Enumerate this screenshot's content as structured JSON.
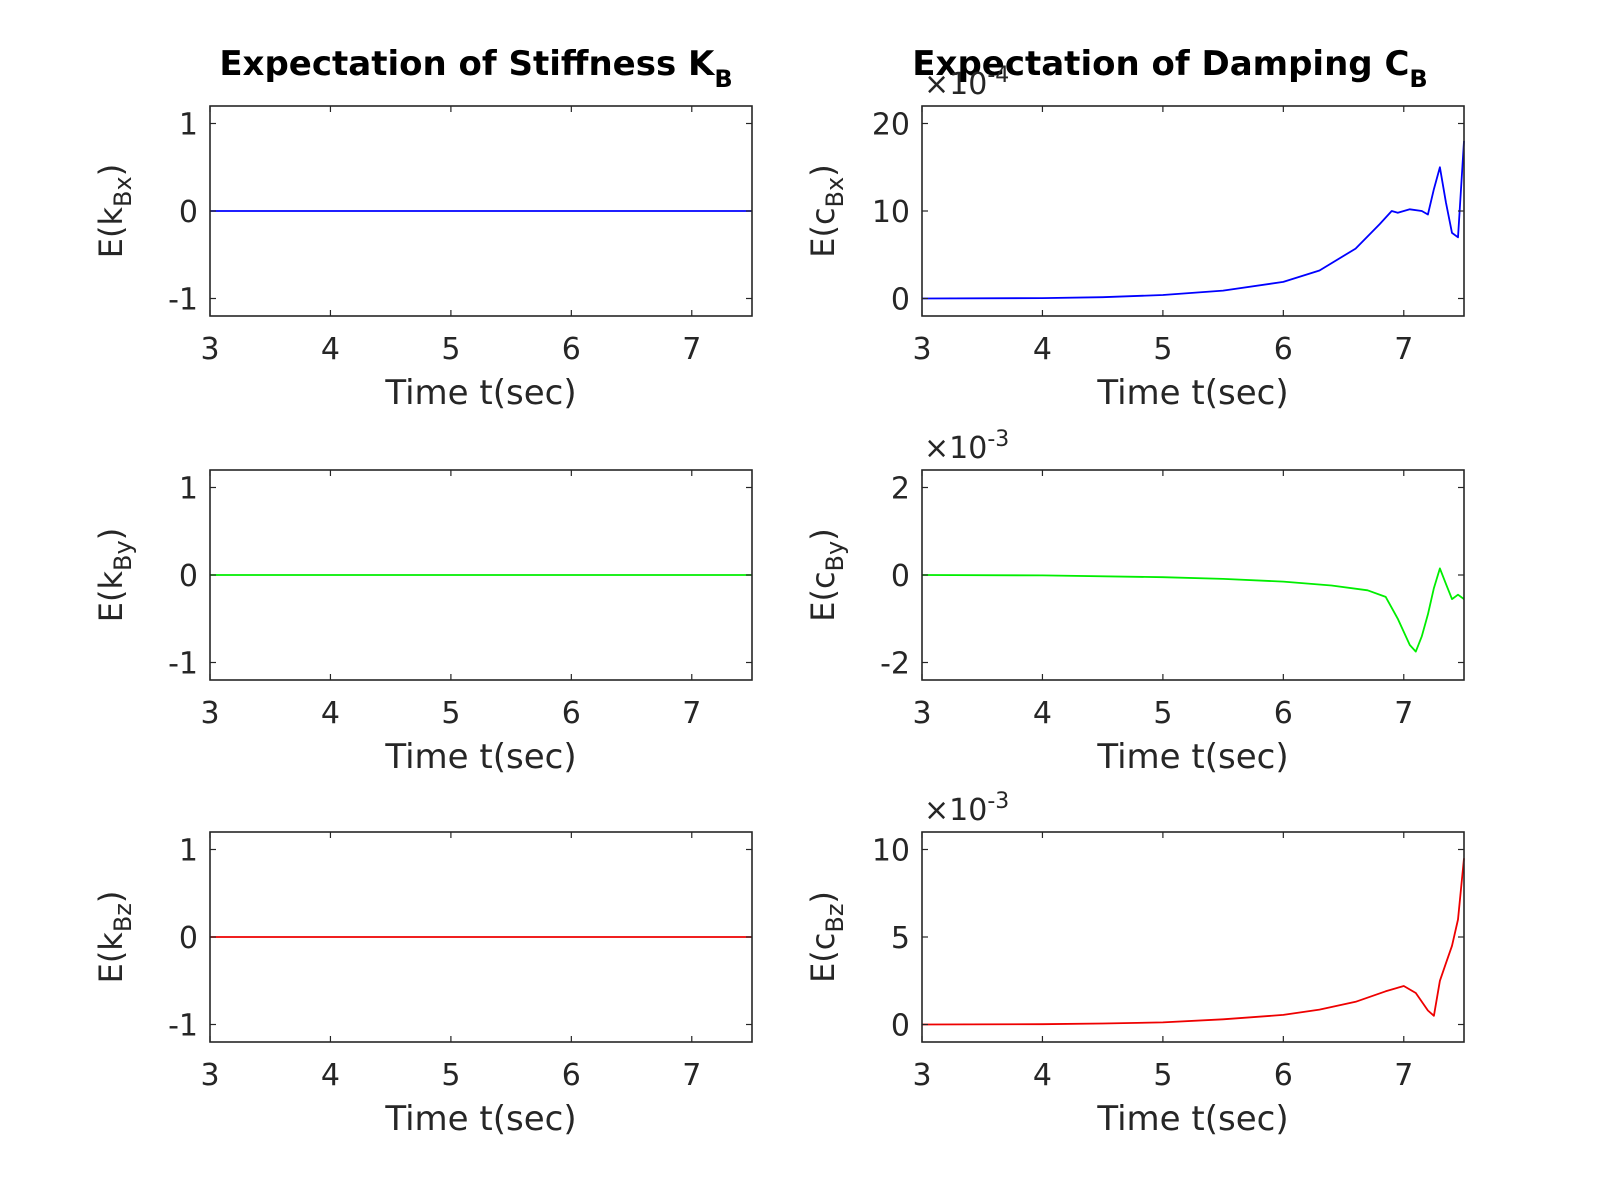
{
  "figure": {
    "col_titles": [
      {
        "text": "Expectation of Stiffness K",
        "sub": "B"
      },
      {
        "text": "Expectation of Damping C",
        "sub": "B"
      }
    ]
  },
  "chart_data": [
    {
      "type": "line",
      "id": "kBx",
      "ylabel": {
        "pre": "E(k",
        "sub": "Bx",
        "post": ")"
      },
      "xlabel": "Time t(sec)",
      "xlim": [
        3,
        7.5
      ],
      "ylim": [
        -1.2,
        1.2
      ],
      "xticks": [
        3,
        4,
        5,
        6,
        7
      ],
      "yticks": [
        -1,
        0,
        1
      ],
      "ytick_labels": [
        "-1",
        "0",
        "1"
      ],
      "multiplier": null,
      "series": [
        {
          "color": "#0000ff",
          "x": [
            3,
            7.5
          ],
          "y": [
            0,
            0
          ]
        }
      ]
    },
    {
      "type": "line",
      "id": "cBx",
      "ylabel": {
        "pre": "E(c",
        "sub": "Bx",
        "post": ")"
      },
      "xlabel": "Time t(sec)",
      "xlim": [
        3,
        7.5
      ],
      "ylim": [
        -2,
        22
      ],
      "xticks": [
        3,
        4,
        5,
        6,
        7
      ],
      "yticks": [
        0,
        10,
        20
      ],
      "ytick_labels": [
        "0",
        "10",
        "20"
      ],
      "multiplier": {
        "base": "×10",
        "exp": "-4"
      },
      "series": [
        {
          "color": "#0000ff",
          "x": [
            3,
            4,
            4.5,
            5,
            5.5,
            6,
            6.3,
            6.6,
            6.8,
            6.9,
            6.95,
            7.05,
            7.15,
            7.2,
            7.25,
            7.3,
            7.35,
            7.4,
            7.45,
            7.5
          ],
          "y": [
            0,
            0.05,
            0.15,
            0.4,
            0.9,
            1.9,
            3.2,
            5.7,
            8.5,
            10.0,
            9.8,
            10.2,
            10.0,
            9.6,
            12.5,
            15.0,
            11.0,
            7.5,
            7.0,
            18.0
          ]
        }
      ]
    },
    {
      "type": "line",
      "id": "kBy",
      "ylabel": {
        "pre": "E(k",
        "sub": "By",
        "post": ")"
      },
      "xlabel": "Time t(sec)",
      "xlim": [
        3,
        7.5
      ],
      "ylim": [
        -1.2,
        1.2
      ],
      "xticks": [
        3,
        4,
        5,
        6,
        7
      ],
      "yticks": [
        -1,
        0,
        1
      ],
      "ytick_labels": [
        "-1",
        "0",
        "1"
      ],
      "multiplier": null,
      "series": [
        {
          "color": "#00ee00",
          "x": [
            3,
            7.5
          ],
          "y": [
            0,
            0
          ]
        }
      ]
    },
    {
      "type": "line",
      "id": "cBy",
      "ylabel": {
        "pre": "E(c",
        "sub": "By",
        "post": ")"
      },
      "xlabel": "Time t(sec)",
      "xlim": [
        3,
        7.5
      ],
      "ylim": [
        -2.4,
        2.4
      ],
      "xticks": [
        3,
        4,
        5,
        6,
        7
      ],
      "yticks": [
        -2,
        0,
        2
      ],
      "ytick_labels": [
        "-2",
        "0",
        "2"
      ],
      "multiplier": {
        "base": "×10",
        "exp": "-3"
      },
      "series": [
        {
          "color": "#00ee00",
          "x": [
            3,
            4,
            5,
            5.5,
            6,
            6.4,
            6.7,
            6.85,
            6.95,
            7.05,
            7.1,
            7.15,
            7.2,
            7.25,
            7.3,
            7.35,
            7.4,
            7.45,
            7.5
          ],
          "y": [
            0,
            -0.01,
            -0.05,
            -0.09,
            -0.15,
            -0.24,
            -0.35,
            -0.5,
            -1.0,
            -1.6,
            -1.75,
            -1.4,
            -0.9,
            -0.3,
            0.15,
            -0.2,
            -0.55,
            -0.45,
            -0.55
          ]
        }
      ]
    },
    {
      "type": "line",
      "id": "kBz",
      "ylabel": {
        "pre": "E(k",
        "sub": "Bz",
        "post": ")"
      },
      "xlabel": "Time t(sec)",
      "xlim": [
        3,
        7.5
      ],
      "ylim": [
        -1.2,
        1.2
      ],
      "xticks": [
        3,
        4,
        5,
        6,
        7
      ],
      "yticks": [
        -1,
        0,
        1
      ],
      "ytick_labels": [
        "-1",
        "0",
        "1"
      ],
      "multiplier": null,
      "series": [
        {
          "color": "#ee0000",
          "x": [
            3,
            7.5
          ],
          "y": [
            0,
            0
          ]
        }
      ]
    },
    {
      "type": "line",
      "id": "cBz",
      "ylabel": {
        "pre": "E(c",
        "sub": "Bz",
        "post": ")"
      },
      "xlabel": "Time t(sec)",
      "xlim": [
        3,
        7.5
      ],
      "ylim": [
        -1,
        11
      ],
      "xticks": [
        3,
        4,
        5,
        6,
        7
      ],
      "yticks": [
        0,
        5,
        10
      ],
      "ytick_labels": [
        "0",
        "5",
        "10"
      ],
      "multiplier": {
        "base": "×10",
        "exp": "-3"
      },
      "series": [
        {
          "color": "#ee0000",
          "x": [
            3,
            4,
            4.5,
            5,
            5.5,
            6,
            6.3,
            6.6,
            6.85,
            7.0,
            7.1,
            7.2,
            7.25,
            7.3,
            7.35,
            7.4,
            7.45,
            7.5
          ],
          "y": [
            0,
            0.02,
            0.06,
            0.12,
            0.3,
            0.55,
            0.85,
            1.3,
            1.9,
            2.2,
            1.8,
            0.8,
            0.5,
            2.5,
            3.5,
            4.5,
            6.0,
            9.5
          ]
        }
      ]
    }
  ]
}
